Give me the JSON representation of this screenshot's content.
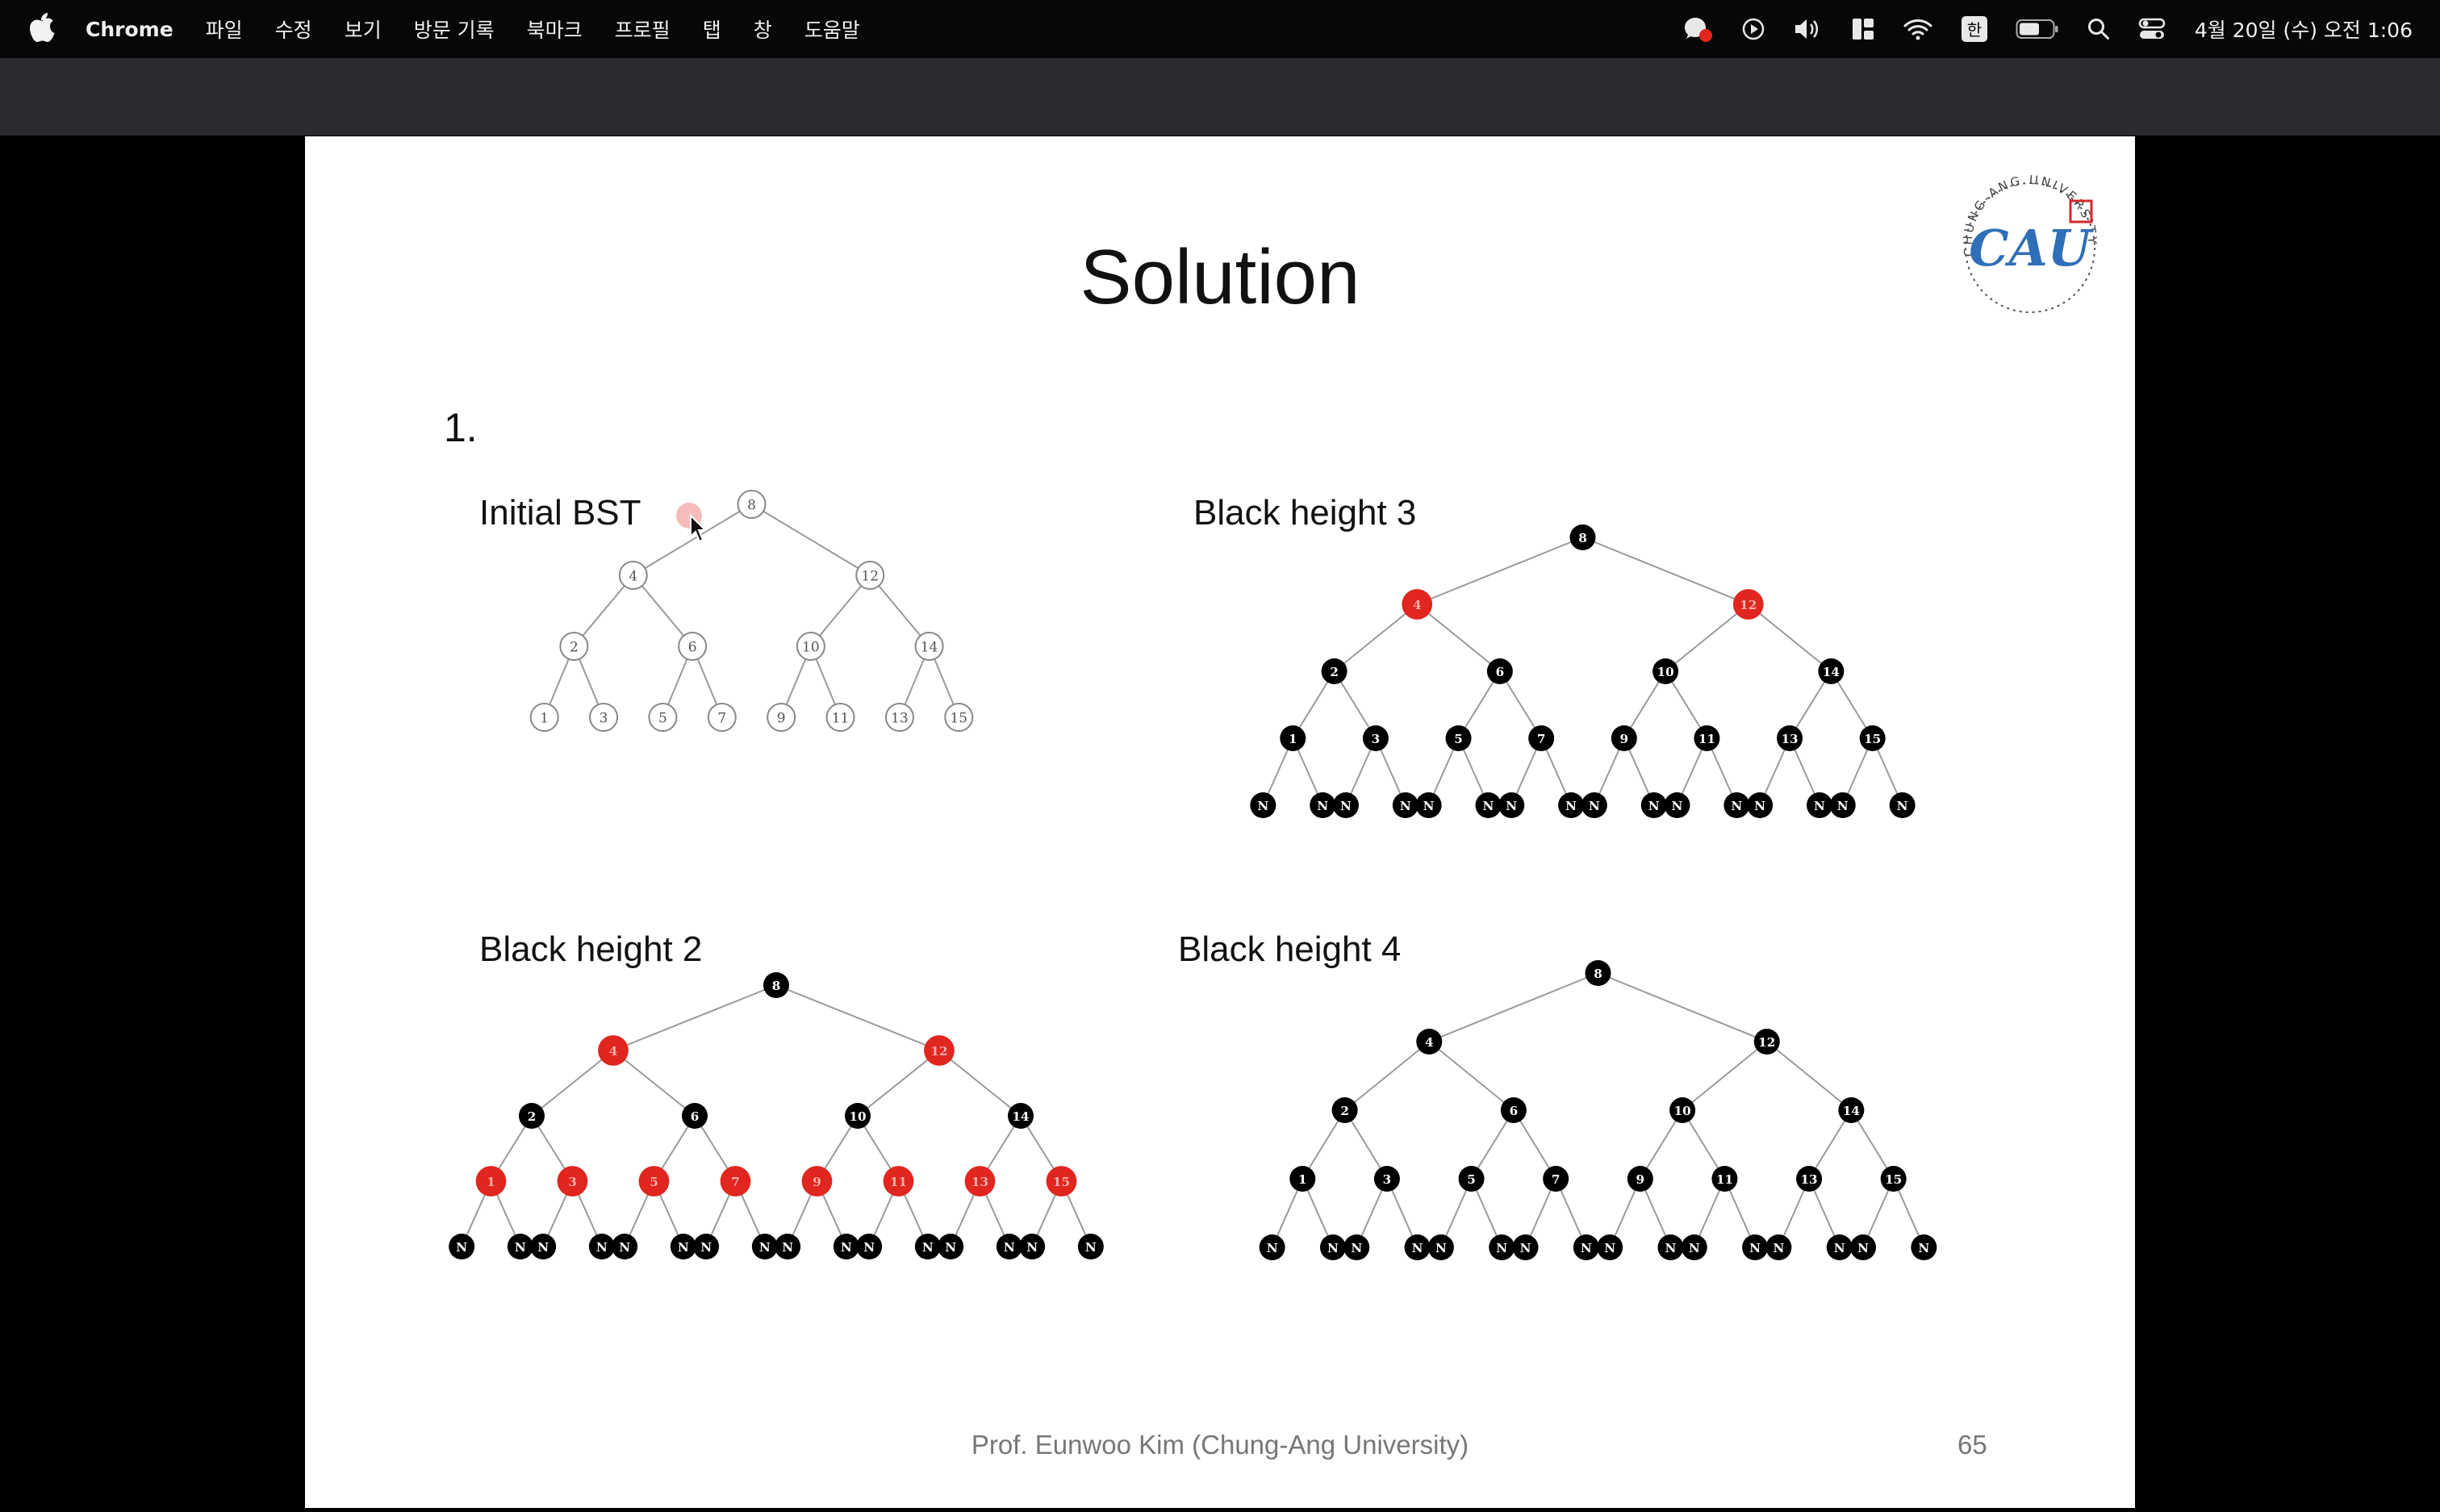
{
  "menubar": {
    "app_name": "Chrome",
    "menu_items": [
      "파일",
      "수정",
      "보기",
      "방문 기록",
      "북마크",
      "프로필",
      "탭",
      "창",
      "도움말"
    ],
    "status_icons": [
      "notification-icon",
      "play-icon",
      "volume-icon",
      "layout-icon",
      "wifi-icon",
      "input-method-icon",
      "battery-icon",
      "search-icon",
      "control-center-icon"
    ],
    "input_method": "한",
    "clock": "4월 20일 (수) 오전 1:06"
  },
  "slide": {
    "title": "Solution",
    "problem_number": "1.",
    "panels": {
      "initial": {
        "label": "Initial BST"
      },
      "bh3": {
        "label": "Black height 3"
      },
      "bh2": {
        "label": "Black height 2"
      },
      "bh4": {
        "label": "Black height 4"
      }
    },
    "footer": "Prof. Eunwoo Kim (Chung-Ang University)",
    "page_number": "65",
    "logo_text": "CAU",
    "logo_ring_text": "CHUNG-ANG UNIVERSITY",
    "trees": {
      "keys": [
        "8",
        "4",
        "12",
        "2",
        "6",
        "10",
        "14",
        "1",
        "3",
        "5",
        "7",
        "9",
        "11",
        "13",
        "15"
      ],
      "nil_label": "N",
      "bh3_red": [
        "4",
        "12"
      ],
      "bh2_red": [
        "4",
        "12",
        "1",
        "3",
        "5",
        "7",
        "9",
        "11",
        "13",
        "15"
      ],
      "bh4_red": []
    },
    "colors": {
      "red_node": "#e0261f",
      "black_node": "#000000",
      "edge": "#9a9a9a"
    }
  }
}
